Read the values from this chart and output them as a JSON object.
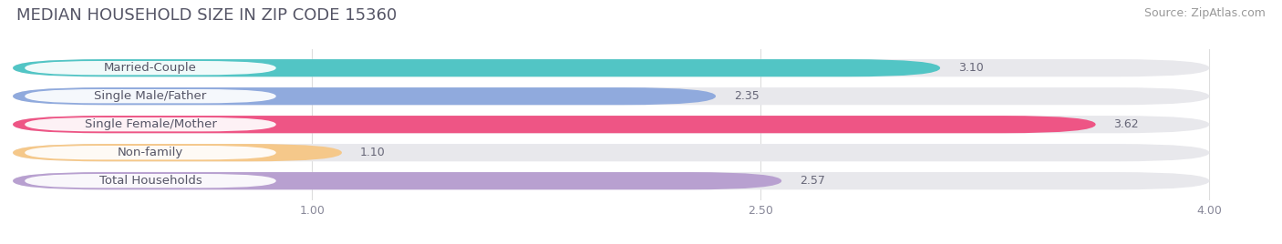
{
  "title": "MEDIAN HOUSEHOLD SIZE IN ZIP CODE 15360",
  "source": "Source: ZipAtlas.com",
  "categories": [
    "Married-Couple",
    "Single Male/Father",
    "Single Female/Mother",
    "Non-family",
    "Total Households"
  ],
  "values": [
    3.1,
    2.35,
    3.62,
    1.1,
    2.57
  ],
  "bar_colors": [
    "#52c5c5",
    "#90aadd",
    "#ee5585",
    "#f5c88a",
    "#b8a0d0"
  ],
  "label_bg_color": "#ffffff",
  "background_color": "#ffffff",
  "bar_bg_color": "#e8e8ec",
  "xlim": [
    0.0,
    4.2
  ],
  "xmin": 0.0,
  "xmax": 4.0,
  "xticks": [
    1.0,
    2.5,
    4.0
  ],
  "title_fontsize": 13,
  "source_fontsize": 9,
  "label_fontsize": 9.5,
  "value_fontsize": 9
}
